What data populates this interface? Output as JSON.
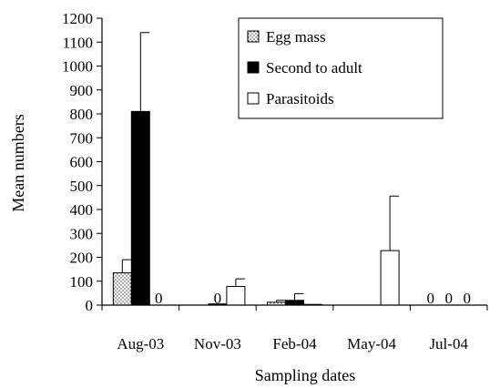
{
  "chart_data": {
    "type": "bar",
    "xlabel": "Sampling dates",
    "ylabel": "Mean numbers",
    "ylim": [
      0,
      1200
    ],
    "yticks": [
      0,
      100,
      200,
      300,
      400,
      500,
      600,
      700,
      800,
      900,
      1000,
      1100,
      1200
    ],
    "categories": [
      "Aug-03",
      "Nov-03",
      "Feb-04",
      "May-04",
      "Jul-04"
    ],
    "legend_position": "top-right",
    "series": [
      {
        "name": "Egg mass",
        "pattern": "dotted",
        "color": "#ffffff",
        "values": [
          135,
          0,
          12,
          0,
          0
        ],
        "error": [
          55,
          0,
          8,
          0,
          0
        ],
        "zero_labels": [
          "",
          "",
          "",
          "",
          "0"
        ]
      },
      {
        "name": "Second to adult",
        "pattern": "solid",
        "color": "#000000",
        "values": [
          810,
          5,
          20,
          0,
          0
        ],
        "error": [
          330,
          0,
          28,
          0,
          0
        ],
        "zero_labels": [
          "",
          "0",
          "",
          "",
          "0"
        ]
      },
      {
        "name": "Parasitoids",
        "pattern": "hollow",
        "color": "#ffffff",
        "values": [
          0,
          78,
          3,
          228,
          0
        ],
        "error": [
          0,
          32,
          0,
          228,
          0
        ],
        "zero_labels": [
          "0",
          "",
          "",
          "",
          "0"
        ]
      }
    ]
  }
}
